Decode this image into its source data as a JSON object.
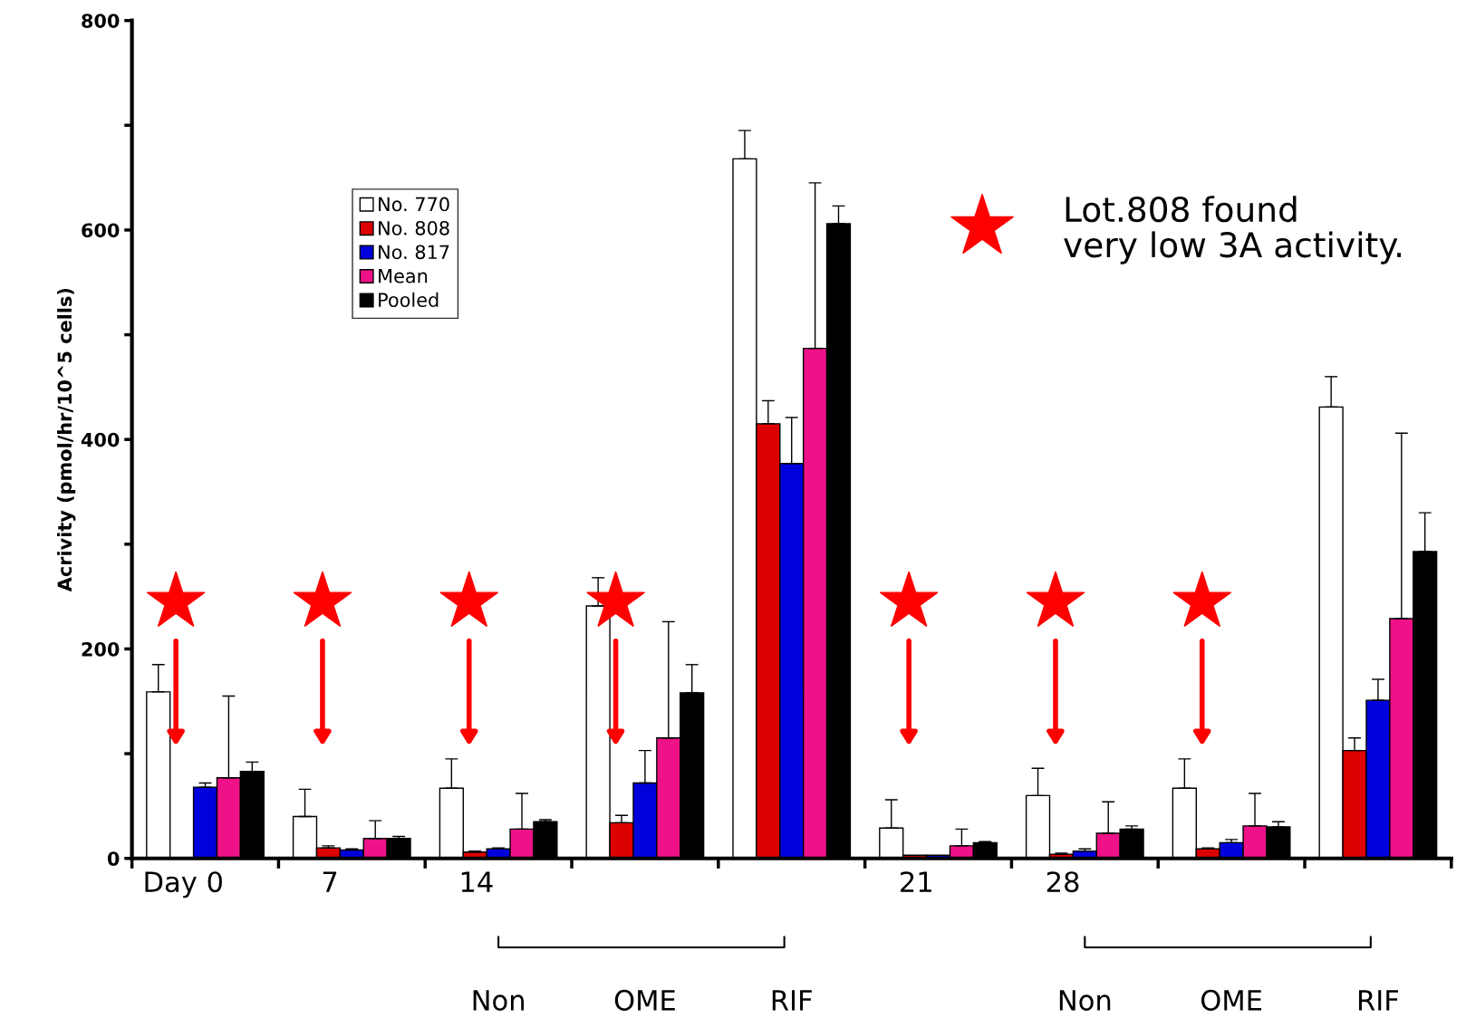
{
  "chart_data": {
    "type": "bar",
    "ylabel": "Acrivity (pmol/hr/10^5 cells)",
    "categories": [
      "Day 0",
      "7",
      "14",
      null,
      null,
      "21",
      "28",
      null,
      null
    ],
    "series": [
      {
        "name": "No. 770",
        "color": "#ffffff",
        "values": [
          159,
          40,
          67,
          241,
          668,
          29,
          60,
          67,
          431
        ],
        "errors": [
          [
            159,
            185
          ],
          [
            40,
            66
          ],
          [
            67,
            95
          ],
          [
            241,
            268
          ],
          [
            668,
            695
          ],
          [
            29,
            56
          ],
          [
            60,
            86
          ],
          [
            67,
            95
          ],
          [
            431,
            460
          ]
        ]
      },
      {
        "name": "No. 808",
        "color": "#dd0000",
        "values": [
          null,
          10,
          6,
          34,
          415,
          3,
          4,
          9,
          103
        ],
        "errors": [
          null,
          [
            10,
            12
          ],
          [
            6,
            7
          ],
          [
            34,
            41
          ],
          [
            415,
            437
          ],
          null,
          [
            4,
            5
          ],
          [
            9,
            10
          ],
          [
            103,
            115
          ]
        ]
      },
      {
        "name": "No. 817",
        "color": "#0000dd",
        "values": [
          68,
          8,
          9,
          72,
          377,
          3,
          7,
          15,
          151
        ],
        "errors": [
          [
            68,
            72
          ],
          [
            8,
            9
          ],
          [
            9,
            10
          ],
          [
            72,
            103
          ],
          [
            377,
            421
          ],
          null,
          [
            7,
            9
          ],
          [
            15,
            18
          ],
          [
            151,
            171
          ]
        ]
      },
      {
        "name": "Mean",
        "color": "#ee1188",
        "values": [
          77,
          19,
          28,
          115,
          487,
          12,
          24,
          31,
          229
        ],
        "errors": [
          [
            77,
            155
          ],
          [
            19,
            36
          ],
          [
            28,
            62
          ],
          [
            115,
            226
          ],
          [
            487,
            645
          ],
          [
            12,
            28
          ],
          [
            24,
            54
          ],
          [
            31,
            62
          ],
          [
            229,
            406
          ]
        ]
      },
      {
        "name": "Pooled",
        "color": "#000000",
        "values": [
          83,
          19,
          35,
          158,
          606,
          15,
          28,
          30,
          293
        ],
        "errors": [
          [
            83,
            92
          ],
          [
            19,
            21
          ],
          [
            35,
            37
          ],
          [
            158,
            185
          ],
          [
            606,
            623
          ],
          [
            15,
            16
          ],
          [
            28,
            31
          ],
          [
            30,
            35
          ],
          [
            293,
            330
          ]
        ]
      }
    ],
    "ylim": [
      0,
      800
    ],
    "yticks": [
      0,
      {
        "value": 100,
        "label": null
      },
      200,
      {
        "value": 300,
        "label": null
      },
      400,
      {
        "value": 500,
        "label": null
      },
      600,
      {
        "value": 700,
        "label": null
      },
      800
    ],
    "legend": "top left",
    "grid": false,
    "annotations": [
      "Non",
      "OME",
      "RIF",
      "Non",
      "OME",
      "RIF",
      "Lot.808 found\nvery low 3A activity."
    ]
  }
}
